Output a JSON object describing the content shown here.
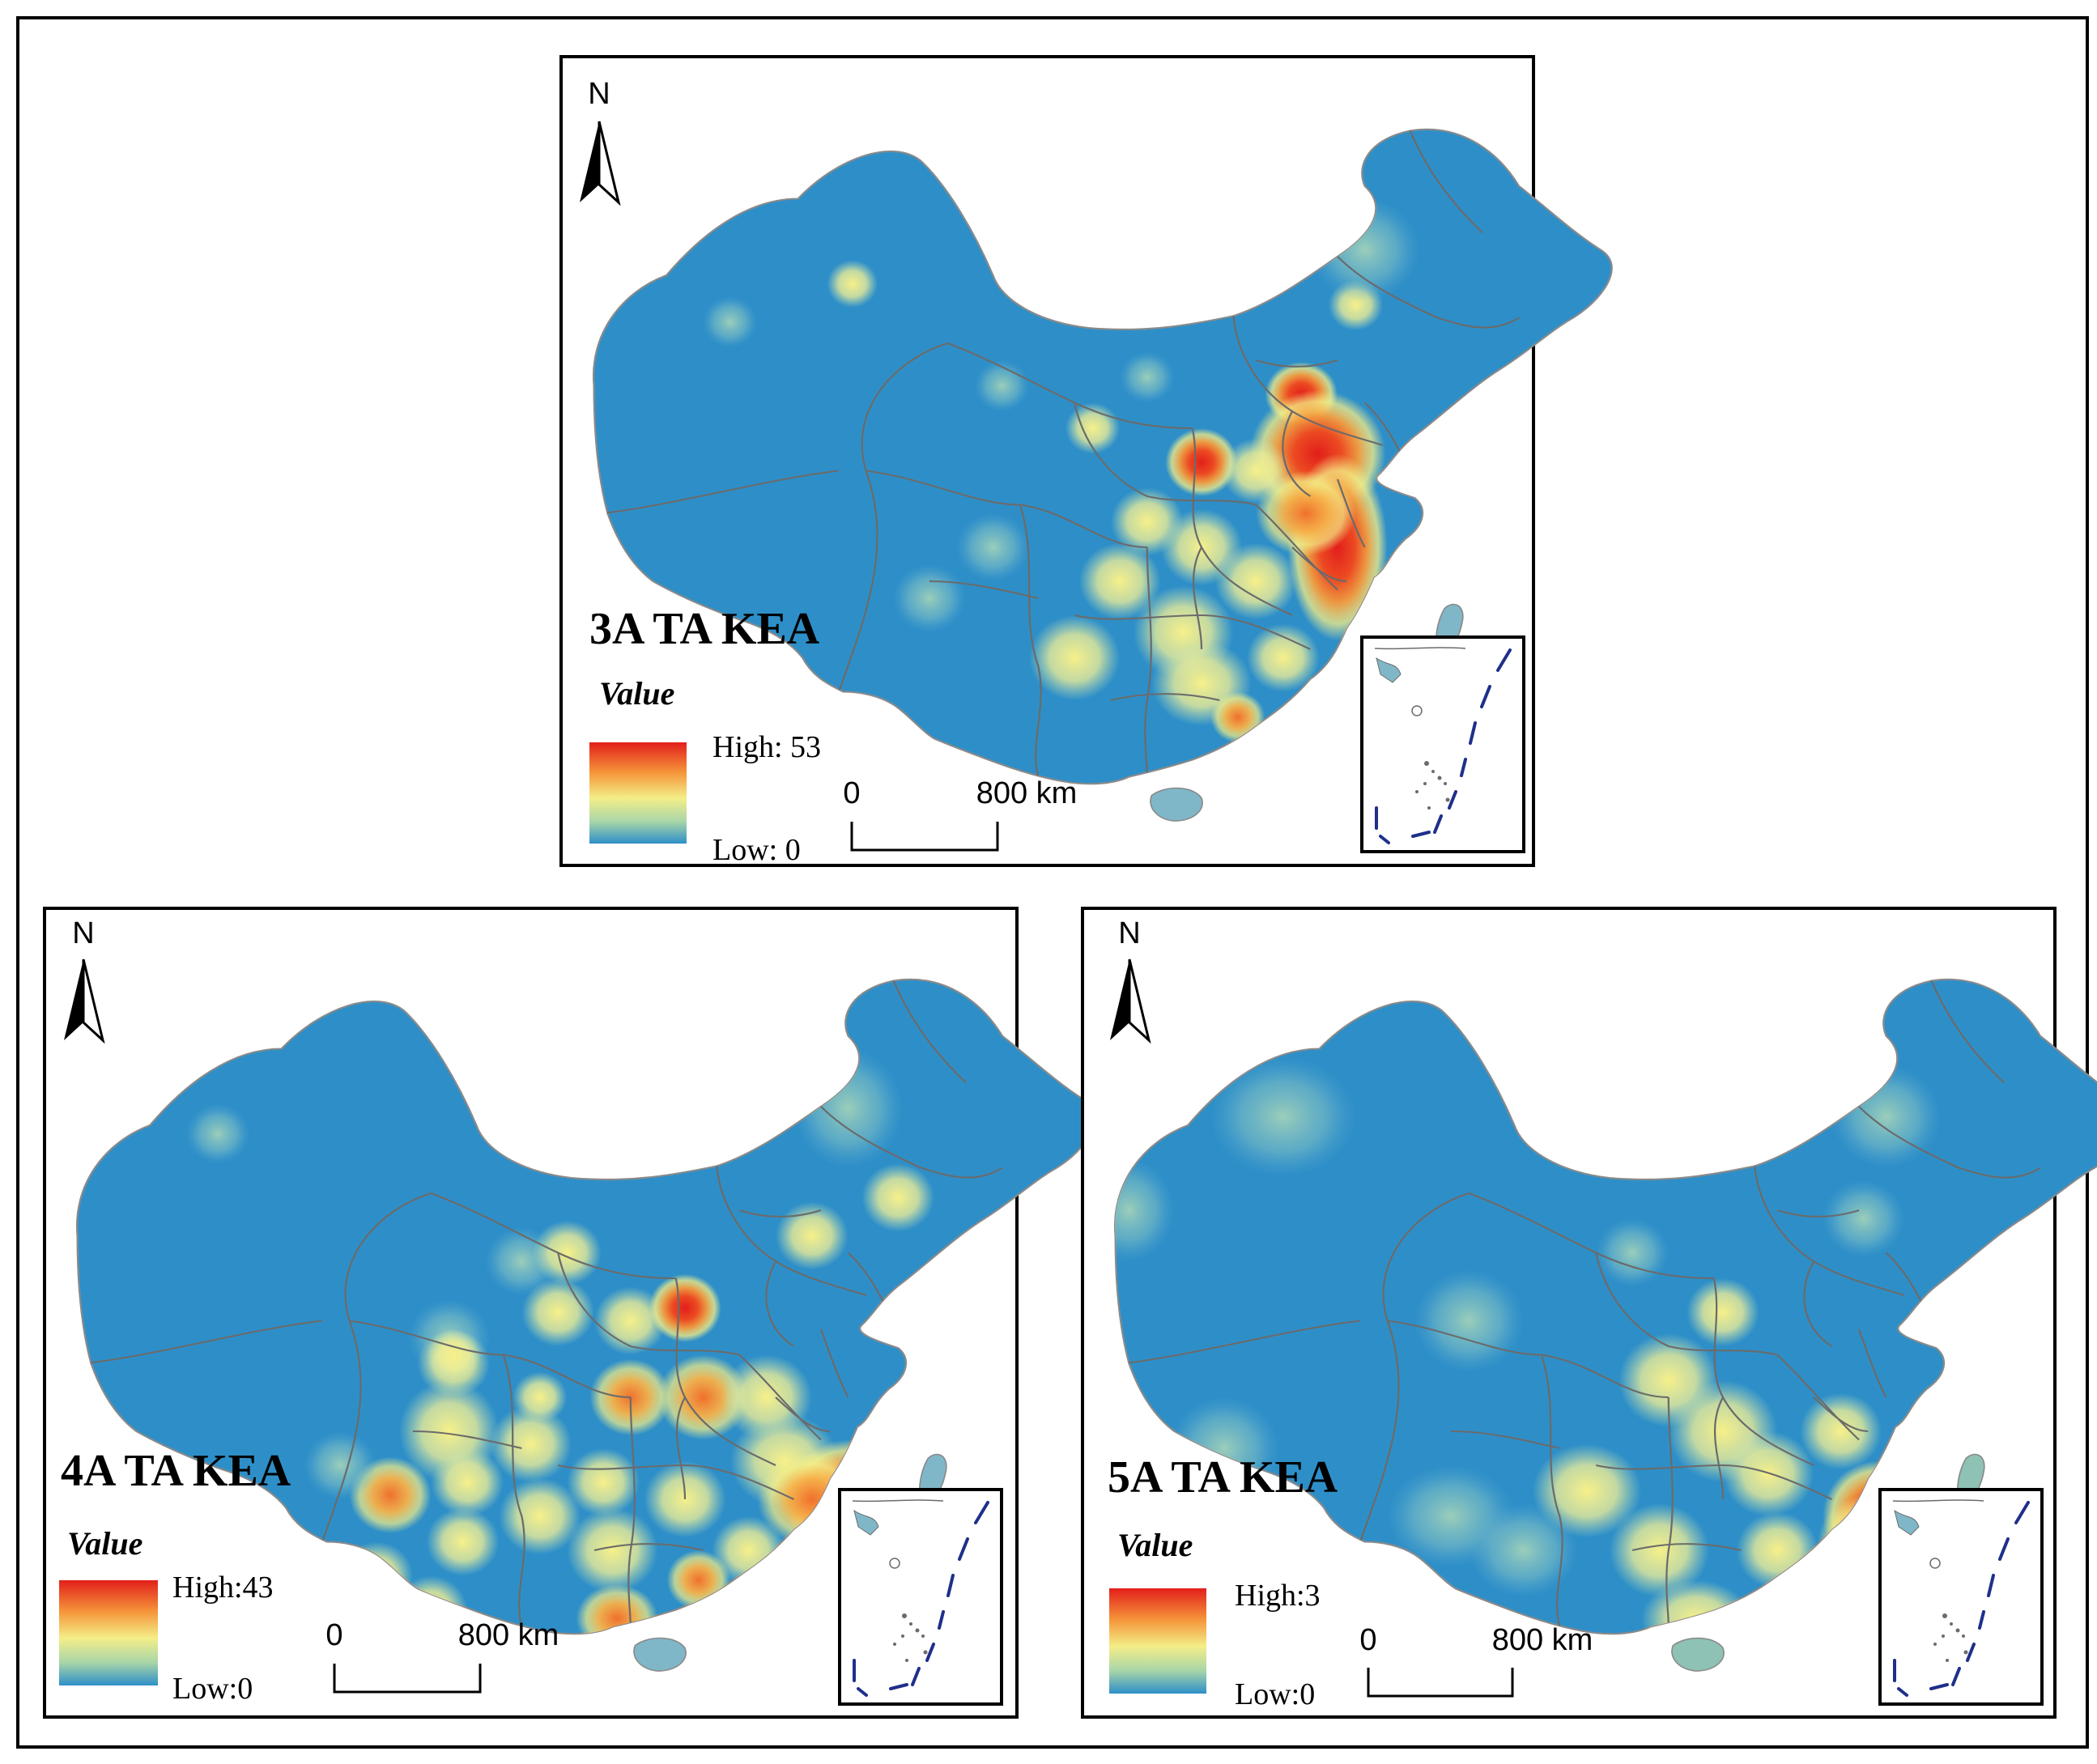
{
  "panels": [
    {
      "id": "3a",
      "title": "3A TA KEA",
      "legend_title": "Value",
      "high_label": "High: 53",
      "low_label": "Low: 0",
      "scale_zero": "0",
      "scale_end": "800 km",
      "north": "N"
    },
    {
      "id": "4a",
      "title": "4A TA KEA",
      "legend_title": "Value",
      "high_label": "High:43",
      "low_label": "Low:0",
      "scale_zero": "0",
      "scale_end": "800 km",
      "north": "N"
    },
    {
      "id": "5a",
      "title": "5A TA KEA",
      "legend_title": "Value",
      "high_label": "High:3",
      "low_label": "Low:0",
      "scale_zero": "0",
      "scale_end": "800 km",
      "north": "N"
    }
  ],
  "colors": {
    "base": "#2e8fc8",
    "low": "#3a95c8",
    "mid": "#f2f08c",
    "high": "#e8281e",
    "orange": "#f08a3a",
    "border": "#6b6b6b",
    "frame": "#000000",
    "nine_dash": "#1f2f8a"
  }
}
